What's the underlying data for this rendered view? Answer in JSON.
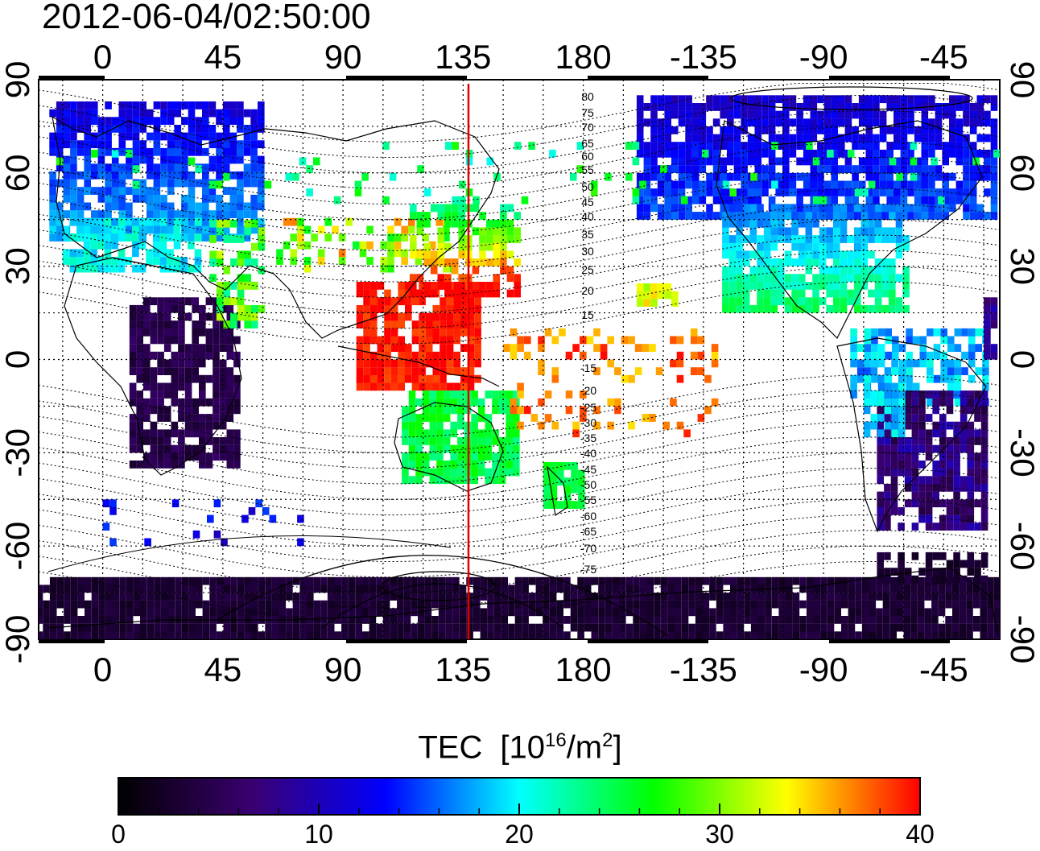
{
  "timestamp": "2012-06-04/02:50:00",
  "map": {
    "lon_ticks": [
      "0",
      "45",
      "90",
      "135",
      "180",
      "-135",
      "-90",
      "-45"
    ],
    "lat_ticks": [
      "90",
      "60",
      "30",
      "0",
      "-30",
      "-60",
      "-90"
    ],
    "terminator_lon": 137,
    "mag_lat_labels_north": [
      "80",
      "75",
      "70",
      "65",
      "60",
      "55",
      "50",
      "45",
      "40",
      "35",
      "30",
      "25",
      "20",
      "15"
    ],
    "mag_lat_labels_south": [
      "-15",
      "-20",
      "-25",
      "-30",
      "-35",
      "-40",
      "-45",
      "-50",
      "-55",
      "-60",
      "-65",
      "-70",
      "-75"
    ],
    "colors": {
      "terminator": "#e00000",
      "grid": "#000000"
    }
  },
  "colorbar": {
    "title_main": "TEC",
    "title_unit_base": "[10",
    "title_unit_exp": "16",
    "title_unit_mid": "/m",
    "title_unit_exp2": "2",
    "title_unit_end": "]",
    "min": 0,
    "max": 40,
    "ticks": [
      "0",
      "10",
      "20",
      "30",
      "40"
    ],
    "stops": [
      "#000000",
      "#3a0070",
      "#0000ff",
      "#00ffff",
      "#00ff00",
      "#ffff00",
      "#ff0000"
    ]
  }
}
